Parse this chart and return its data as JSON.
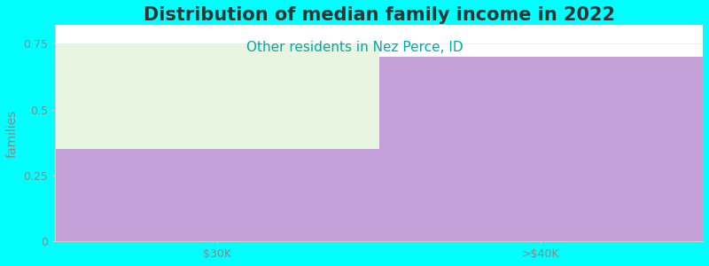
{
  "title": "Distribution of median family income in 2022",
  "subtitle": "Other residents in Nez Perce, ID",
  "title_fontsize": 15,
  "subtitle_fontsize": 11,
  "subtitle_color": "#00aaaa",
  "ylabel": "families",
  "ylabel_fontsize": 10,
  "categories": [
    "$30K",
    ">$40K"
  ],
  "purple_values": [
    0.35,
    0.7
  ],
  "green_values": [
    0.4,
    0.0
  ],
  "purple_color": "#c4a0d8",
  "green_color": "#e8f5e0",
  "background_color": "#00ffff",
  "plot_bg_color": "#ffffff",
  "ylim": [
    0,
    0.82
  ],
  "yticks": [
    0,
    0.25,
    0.5,
    0.75
  ],
  "tick_label_fontsize": 9,
  "tick_label_color": "#888888",
  "grid_color": "#eeeeee",
  "spine_color": "#cccccc"
}
